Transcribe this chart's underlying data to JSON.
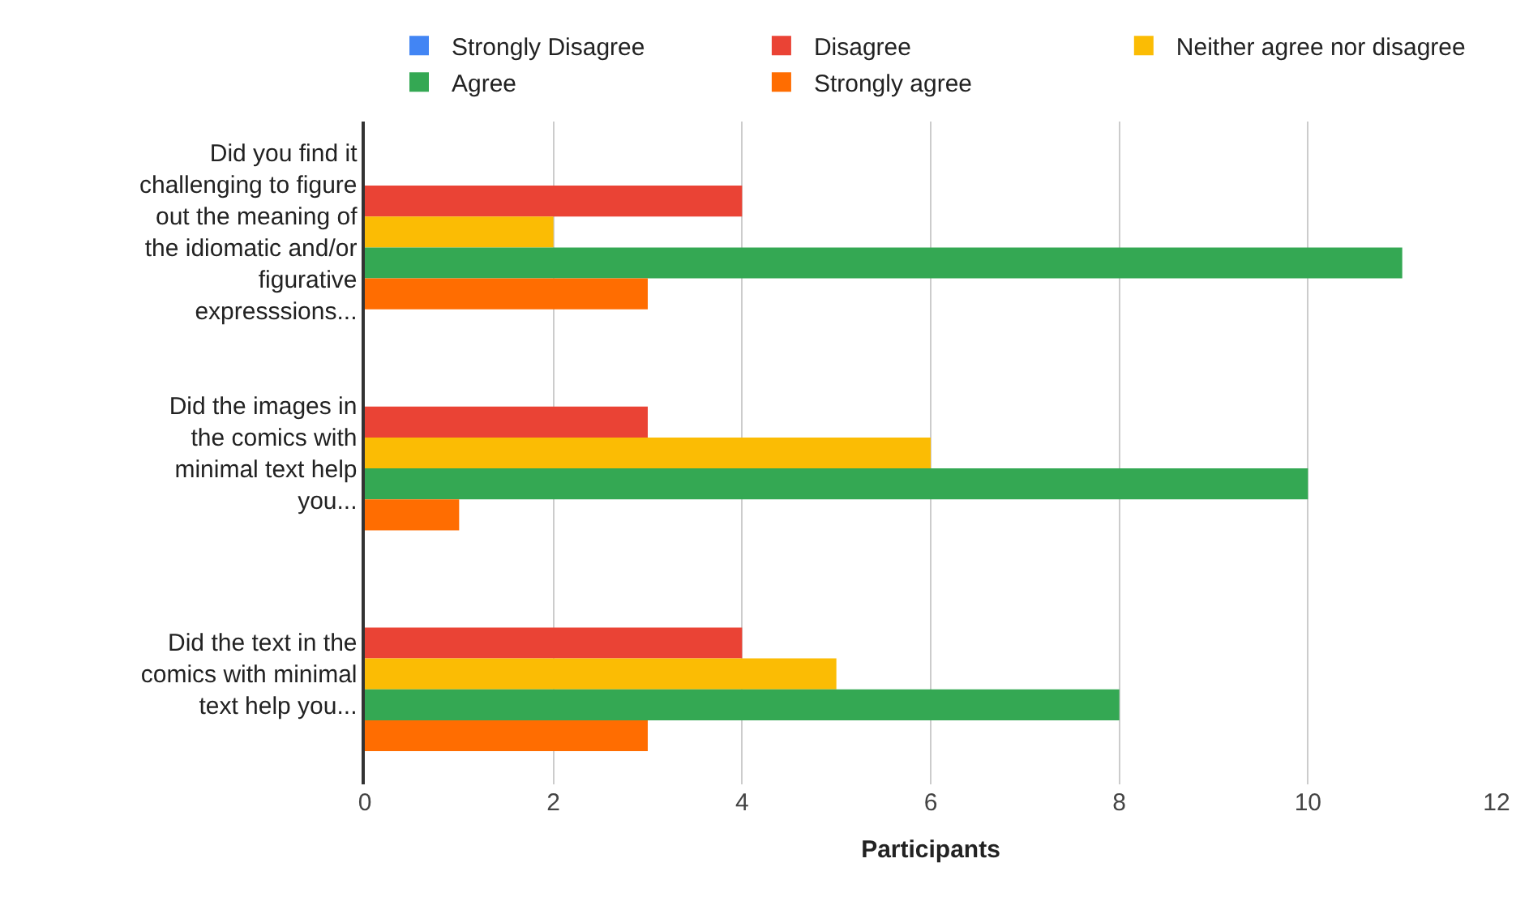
{
  "chart_data": {
    "type": "bar",
    "orientation": "horizontal",
    "xlabel": "Participants",
    "categories": [
      "Did you find it\nchallenging to figure\nout the meaning of\nthe idiomatic and/or\nfigurative\nexpresssions...",
      "Did the images in\nthe comics with\nminimal text help\nyou...",
      "Did the text in the\ncomics with minimal\ntext help you..."
    ],
    "series": [
      {
        "name": "Strongly Disagree",
        "color": "#4285f4",
        "values": [
          0,
          0,
          0
        ]
      },
      {
        "name": "Disagree",
        "color": "#ea4335",
        "values": [
          4,
          3,
          4
        ]
      },
      {
        "name": "Neither agree nor disagree",
        "color": "#fbbc04",
        "values": [
          2,
          6,
          5
        ]
      },
      {
        "name": "Agree",
        "color": "#34a853",
        "values": [
          11,
          10,
          8
        ]
      },
      {
        "name": "Strongly agree",
        "color": "#ff6d01",
        "values": [
          3,
          1,
          3
        ]
      }
    ],
    "xlim": [
      0,
      12
    ],
    "xticks": [
      0,
      2,
      4,
      6,
      8,
      10,
      12
    ],
    "grid": "x",
    "legend": "top"
  }
}
